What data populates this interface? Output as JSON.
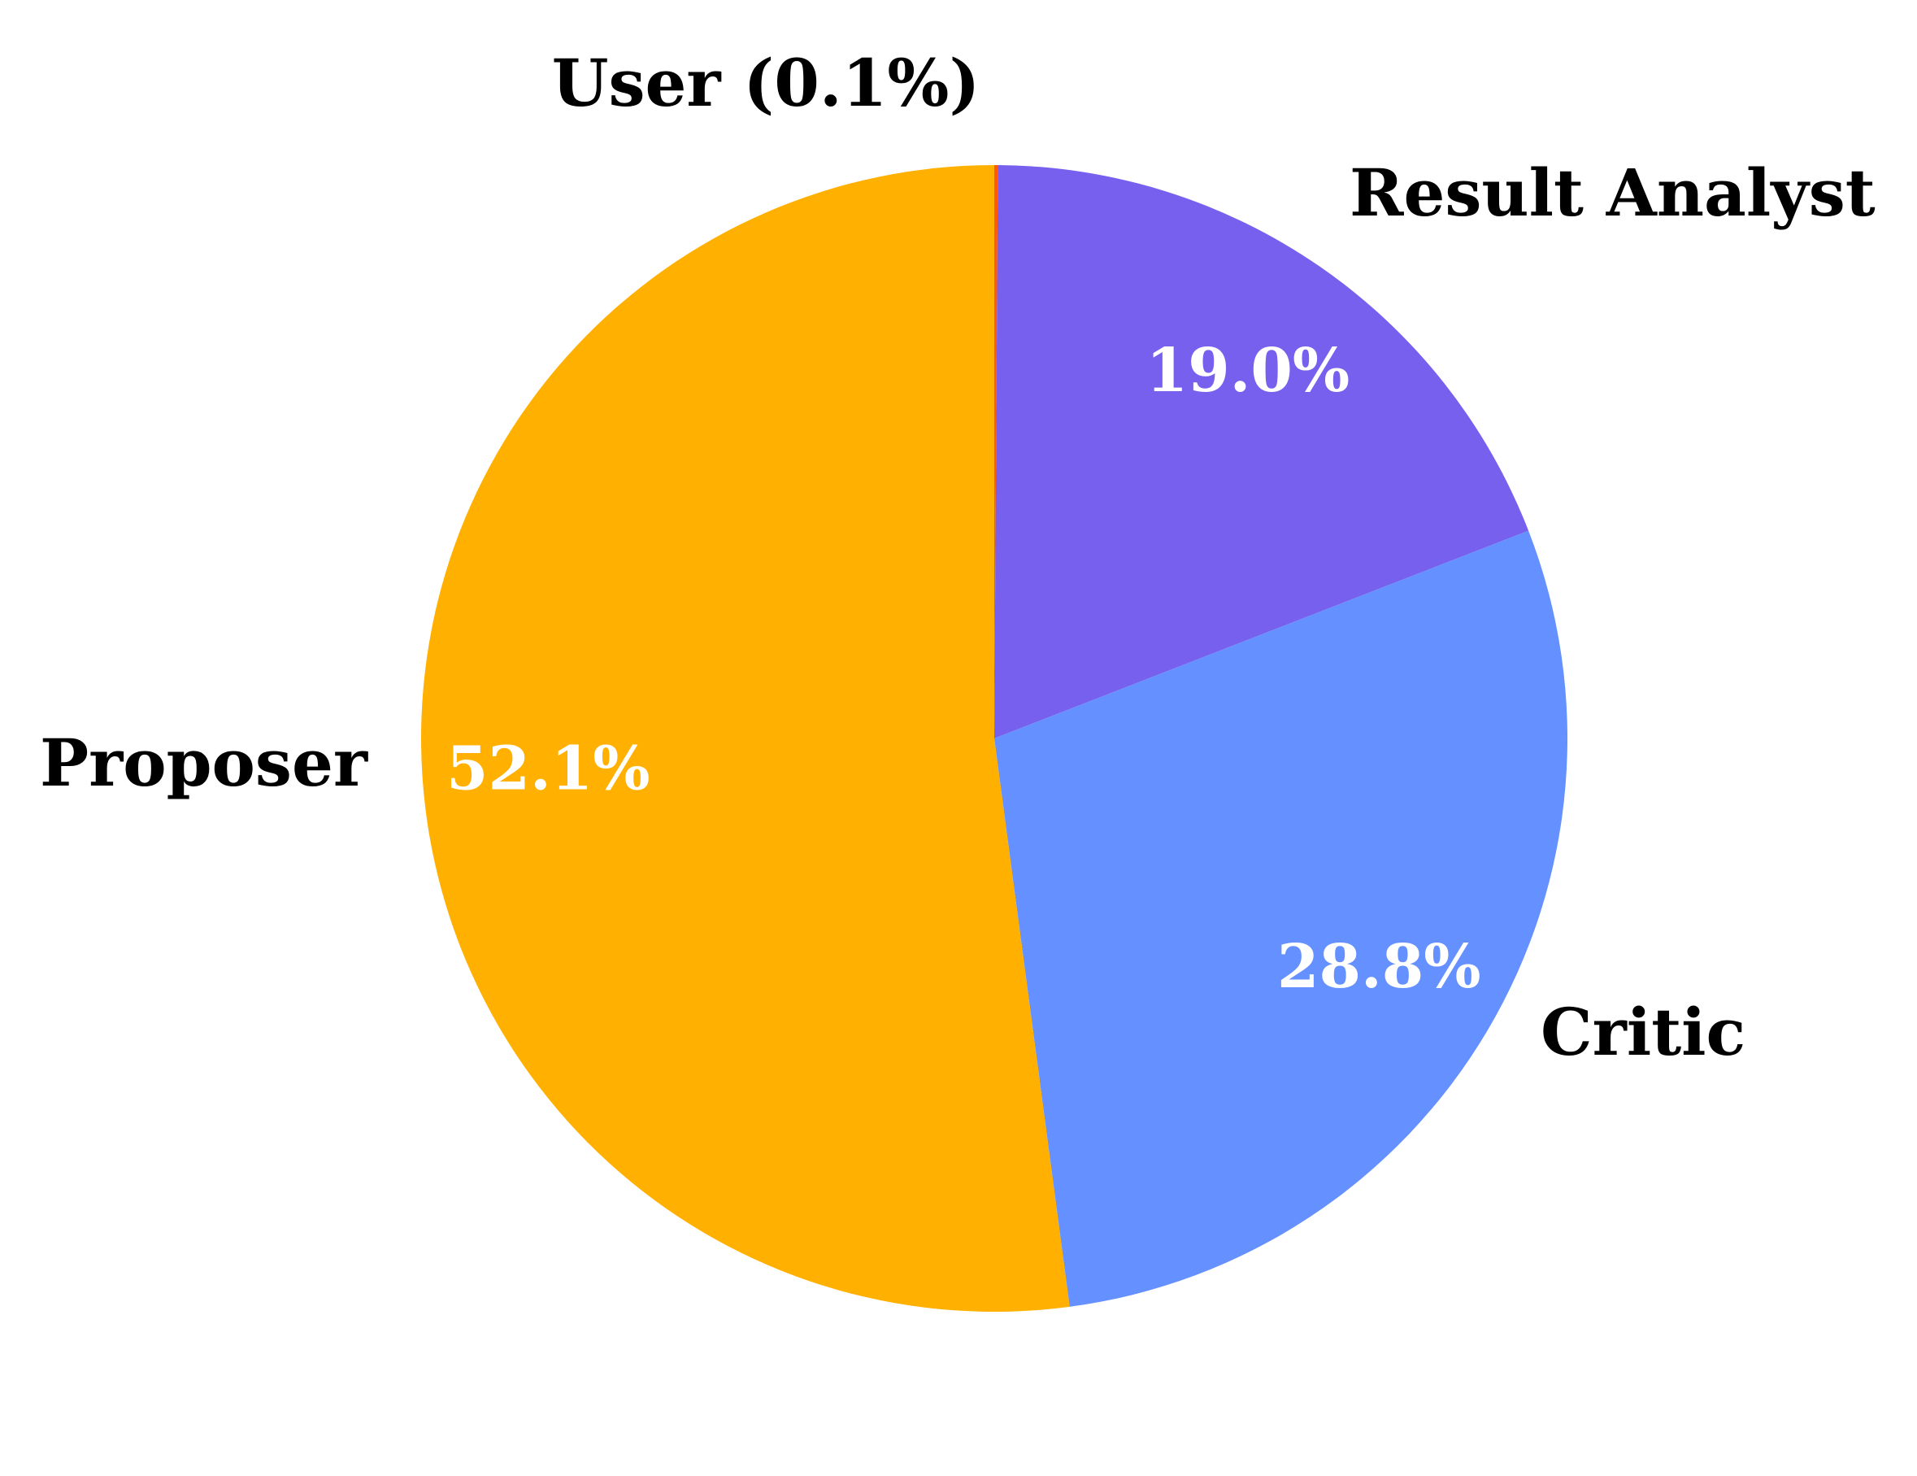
{
  "chart_data": {
    "type": "pie",
    "title": "",
    "slices": [
      {
        "name": "User",
        "value": 0.1,
        "label": "User (0.1%)",
        "pct_label": "",
        "color": "#ff5a00"
      },
      {
        "name": "Result Analyst",
        "value": 19.0,
        "label": "Result Analyst",
        "pct_label": "19.0%",
        "color": "#7860ef"
      },
      {
        "name": "Critic",
        "value": 28.8,
        "label": "Critic",
        "pct_label": "28.8%",
        "color": "#6590ff"
      },
      {
        "name": "Proposer",
        "value": 52.1,
        "label": "Proposer",
        "pct_label": "52.1%",
        "color": "#ffb000"
      }
    ],
    "start_angle_deg": 90,
    "direction": "clockwise",
    "legend": "none"
  }
}
